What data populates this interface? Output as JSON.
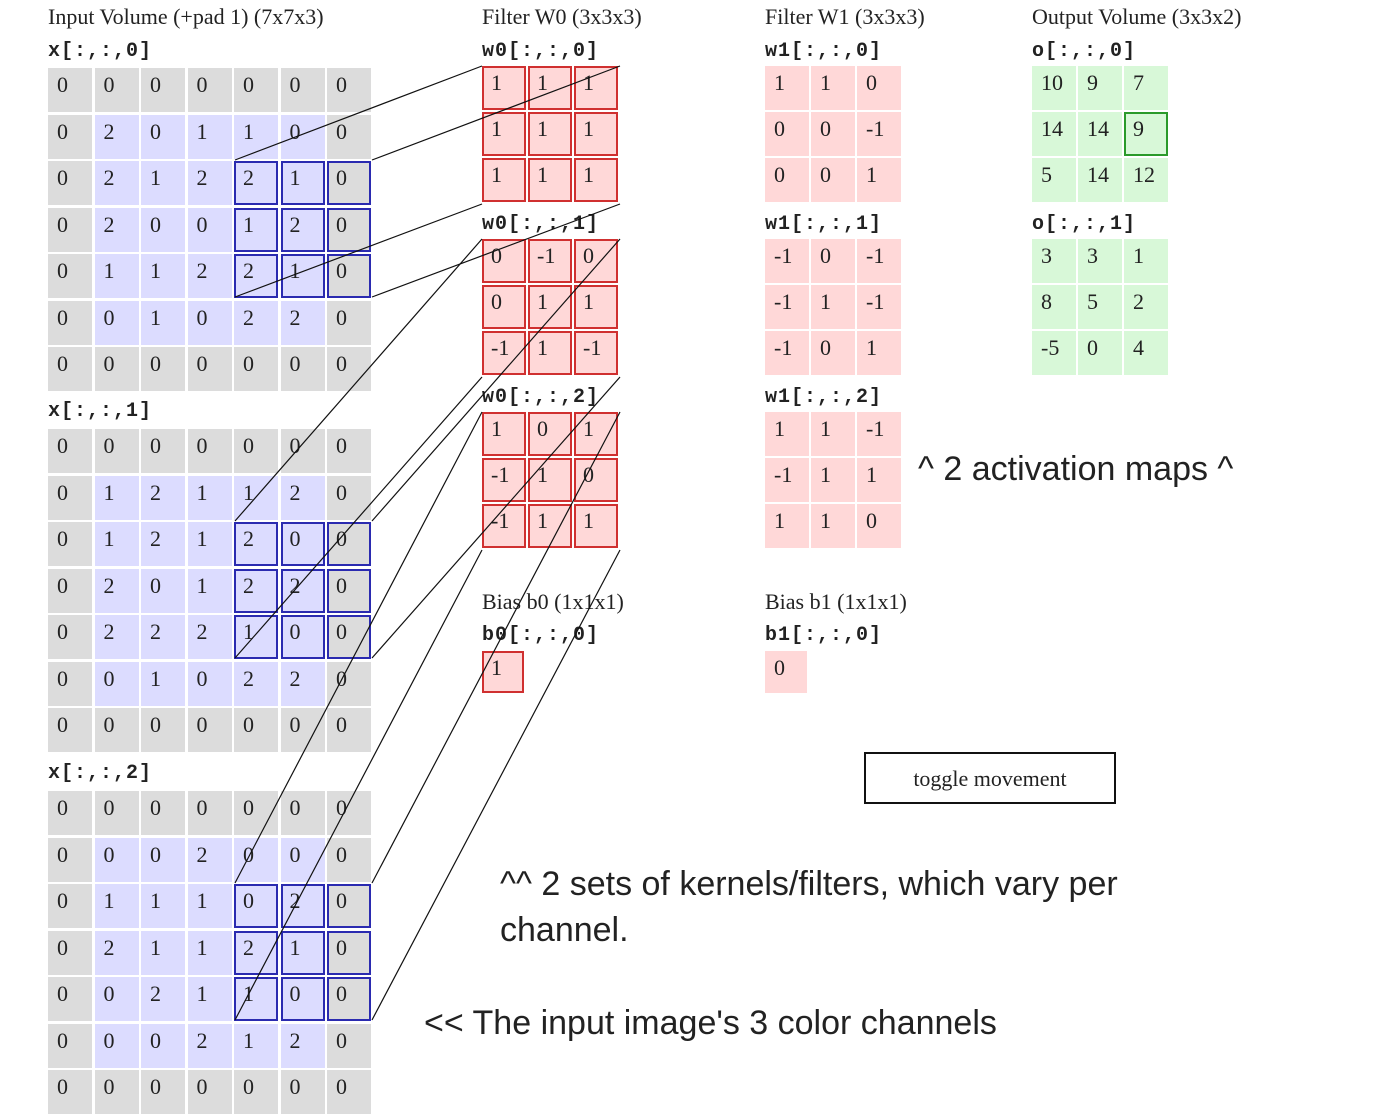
{
  "titles": {
    "input": "Input Volume (+pad 1) (7x7x3)",
    "w0": "Filter W0 (3x3x3)",
    "w1": "Filter W1 (3x3x3)",
    "output": "Output Volume (3x3x2)",
    "b0": "Bias b0 (1x1x1)",
    "b1": "Bias b1 (1x1x1)"
  },
  "input": {
    "labels": [
      "x[:,:,0]",
      "x[:,:,1]",
      "x[:,:,2]"
    ],
    "channels": [
      [
        [
          0,
          0,
          0,
          0,
          0,
          0,
          0
        ],
        [
          0,
          2,
          0,
          1,
          1,
          0,
          0
        ],
        [
          0,
          2,
          1,
          2,
          2,
          1,
          0
        ],
        [
          0,
          2,
          0,
          0,
          1,
          2,
          0
        ],
        [
          0,
          1,
          1,
          2,
          2,
          1,
          0
        ],
        [
          0,
          0,
          1,
          0,
          2,
          2,
          0
        ],
        [
          0,
          0,
          0,
          0,
          0,
          0,
          0
        ]
      ],
      [
        [
          0,
          0,
          0,
          0,
          0,
          0,
          0
        ],
        [
          0,
          1,
          2,
          1,
          1,
          2,
          0
        ],
        [
          0,
          1,
          2,
          1,
          2,
          0,
          0
        ],
        [
          0,
          2,
          0,
          1,
          2,
          2,
          0
        ],
        [
          0,
          2,
          2,
          2,
          1,
          0,
          0
        ],
        [
          0,
          0,
          1,
          0,
          2,
          2,
          0
        ],
        [
          0,
          0,
          0,
          0,
          0,
          0,
          0
        ]
      ],
      [
        [
          0,
          0,
          0,
          0,
          0,
          0,
          0
        ],
        [
          0,
          0,
          0,
          2,
          0,
          0,
          0
        ],
        [
          0,
          1,
          1,
          1,
          0,
          2,
          0
        ],
        [
          0,
          2,
          1,
          1,
          2,
          1,
          0
        ],
        [
          0,
          0,
          2,
          1,
          1,
          0,
          0
        ],
        [
          0,
          0,
          0,
          2,
          1,
          2,
          0
        ],
        [
          0,
          0,
          0,
          0,
          0,
          0,
          0
        ]
      ]
    ]
  },
  "w0": {
    "labels": [
      "w0[:,:,0]",
      "w0[:,:,1]",
      "w0[:,:,2]"
    ],
    "channels": [
      [
        [
          1,
          1,
          1
        ],
        [
          1,
          1,
          1
        ],
        [
          1,
          1,
          1
        ]
      ],
      [
        [
          0,
          -1,
          0
        ],
        [
          0,
          1,
          1
        ],
        [
          -1,
          1,
          -1
        ]
      ],
      [
        [
          1,
          0,
          1
        ],
        [
          -1,
          1,
          0
        ],
        [
          -1,
          1,
          1
        ]
      ]
    ]
  },
  "w1": {
    "labels": [
      "w1[:,:,0]",
      "w1[:,:,1]",
      "w1[:,:,2]"
    ],
    "channels": [
      [
        [
          1,
          1,
          0
        ],
        [
          0,
          0,
          -1
        ],
        [
          0,
          0,
          1
        ]
      ],
      [
        [
          -1,
          0,
          -1
        ],
        [
          -1,
          1,
          -1
        ],
        [
          -1,
          0,
          1
        ]
      ],
      [
        [
          1,
          1,
          -1
        ],
        [
          -1,
          1,
          1
        ],
        [
          1,
          1,
          0
        ]
      ]
    ]
  },
  "bias": {
    "b0_label": "b0[:,:,0]",
    "b0_value": 1,
    "b1_label": "b1[:,:,0]",
    "b1_value": 0
  },
  "output": {
    "labels": [
      "o[:,:,0]",
      "o[:,:,1]"
    ],
    "channels": [
      [
        [
          10,
          9,
          7
        ],
        [
          14,
          14,
          9
        ],
        [
          5,
          14,
          12
        ]
      ],
      [
        [
          3,
          3,
          1
        ],
        [
          8,
          5,
          2
        ],
        [
          -5,
          0,
          4
        ]
      ]
    ]
  },
  "button_label": "toggle movement",
  "notes": {
    "activation": "^ 2 activation maps ^",
    "kernels": "^^ 2 sets of kernels/filters, which vary per channel.",
    "channels": "<< The input image's 3 color channels"
  },
  "colors": {
    "input_pad": "#dcdcdc",
    "input_value": "#dcdcff",
    "weight": "#ffd8d8",
    "output": "#d8f8d8",
    "highlight_input": "#2a2ab0",
    "highlight_filter": "#d03030",
    "highlight_output": "#2a9a2a"
  }
}
